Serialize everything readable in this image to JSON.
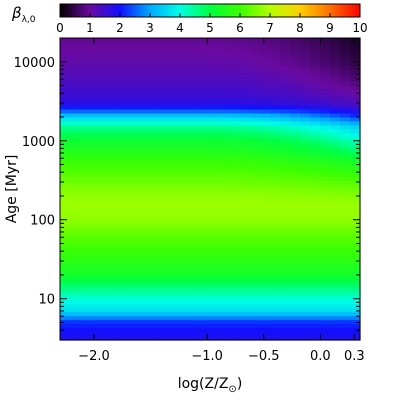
{
  "chart_data": {
    "type": "heatmap",
    "colorbar": {
      "label": "β",
      "label_subscript": "λ,0",
      "range": [
        0,
        10
      ],
      "ticks": [
        "0",
        "1",
        "2",
        "3",
        "4",
        "5",
        "6",
        "7",
        "8",
        "9",
        "10"
      ],
      "colormap": "rainbow (black-purple-blue-cyan-green-yellow-orange-red)",
      "stops": [
        {
          "value": 0,
          "color": "#000000"
        },
        {
          "value": 1,
          "color": "#6a0aa0"
        },
        {
          "value": 2,
          "color": "#1010ff"
        },
        {
          "value": 3,
          "color": "#00aaff"
        },
        {
          "value": 4,
          "color": "#00ffe6"
        },
        {
          "value": 5,
          "color": "#00ff40"
        },
        {
          "value": 6,
          "color": "#3cff00"
        },
        {
          "value": 7,
          "color": "#b4ff00"
        },
        {
          "value": 8,
          "color": "#ffd000"
        },
        {
          "value": 9,
          "color": "#ff7000"
        },
        {
          "value": 10,
          "color": "#ff0000"
        }
      ]
    },
    "xaxis": {
      "label": "log(Z/Z",
      "label_suffix": ")",
      "sun_symbol": "⊙",
      "range": [
        -2.3,
        0.35
      ],
      "ticks": [
        {
          "value": -2.0,
          "label": "−2.0"
        },
        {
          "value": -1.0,
          "label": "−1.0"
        },
        {
          "value": -0.5,
          "label": "−0.5"
        },
        {
          "value": 0.0,
          "label": "0.0"
        },
        {
          "value": 0.3,
          "label": "0.3"
        }
      ]
    },
    "yaxis": {
      "label": "Age",
      "unit": "[Myr]",
      "scale": "log",
      "range": [
        3,
        20000
      ],
      "ticks": [
        {
          "value": 10,
          "label": "10"
        },
        {
          "value": 100,
          "label": "100"
        },
        {
          "value": 1000,
          "label": "1000"
        },
        {
          "value": 10000,
          "label": "10000"
        }
      ]
    },
    "profile_by_age": {
      "ages_myr": [
        3,
        4,
        5,
        6,
        7,
        10,
        15,
        20,
        30,
        50,
        80,
        100,
        150,
        200,
        300,
        500,
        700,
        1000,
        1500,
        2000,
        2500,
        3000,
        4000,
        6000,
        10000,
        20000
      ],
      "beta_low_metallicity": [
        1.8,
        2.0,
        2.2,
        3.0,
        3.6,
        4.1,
        4.8,
        5.3,
        5.7,
        6.1,
        6.5,
        6.7,
        6.8,
        6.7,
        6.4,
        6.0,
        5.6,
        5.2,
        4.5,
        3.5,
        2.2,
        1.7,
        1.5,
        1.3,
        1.1,
        0.9
      ],
      "beta_high_metallicity": [
        1.8,
        2.0,
        2.2,
        3.0,
        3.6,
        4.1,
        4.8,
        5.3,
        5.7,
        6.1,
        6.5,
        6.7,
        6.8,
        6.6,
        6.2,
        5.5,
        4.8,
        4.2,
        3.4,
        2.2,
        1.6,
        1.3,
        1.0,
        0.7,
        0.4,
        0.2
      ]
    },
    "grid": false
  }
}
